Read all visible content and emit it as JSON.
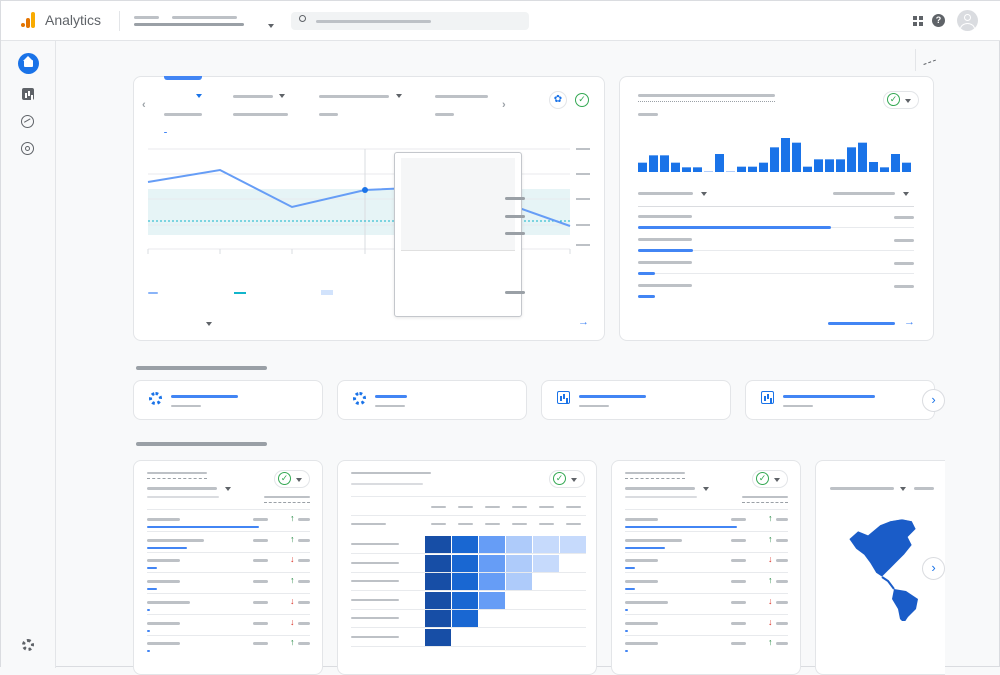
{
  "header": {
    "app_name": "Analytics",
    "logo_colors": [
      "#f9ab00",
      "#e37400"
    ],
    "icons": [
      "apps-icon",
      "help-icon",
      "account-avatar-icon"
    ]
  },
  "sidebar": {
    "items": [
      "home-icon",
      "reports-icon",
      "explore-icon",
      "advertising-icon"
    ],
    "footer": "settings-icon",
    "active_color": "#1a73e8"
  },
  "main_chart": {
    "type": "line",
    "series_values": [
      180,
      168,
      205,
      188,
      185,
      200,
      224
    ],
    "series_color": "#669df6",
    "band_color": "#e6f4f6"
  },
  "realtime_chart": {
    "type": "bar",
    "values": [
      28,
      50,
      50,
      28,
      14,
      14,
      2,
      54,
      2,
      16,
      16,
      28,
      74,
      102,
      88,
      16,
      38,
      38,
      38,
      74,
      88,
      30,
      14,
      54,
      28
    ],
    "color": "#1a73e8"
  },
  "realtime_rows_fill": [
    0.7,
    0.2,
    0.06,
    0.06
  ],
  "insights_cards": [
    "settings-icon",
    "settings-icon",
    "bar-chart-icon",
    "bar-chart-icon"
  ],
  "trends": [
    "up",
    "up",
    "down",
    "up",
    "down",
    "down",
    "up"
  ],
  "trend_colors": {
    "up": "#188038",
    "down": "#d93025"
  }
}
